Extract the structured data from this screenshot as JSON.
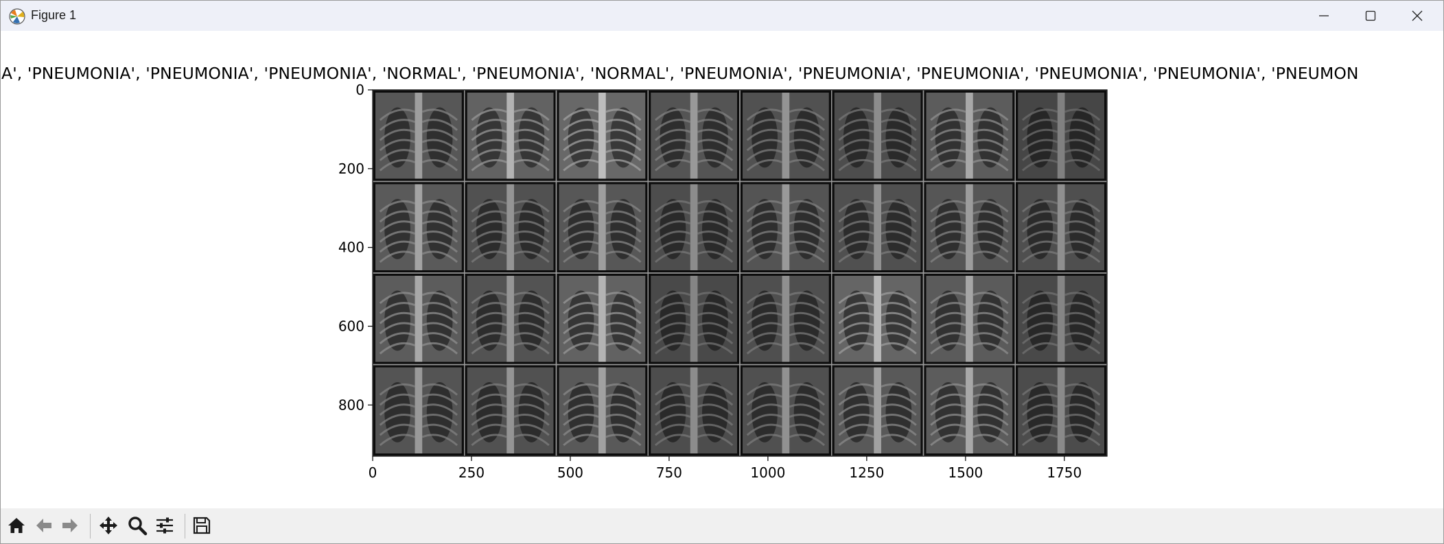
{
  "window": {
    "title": "Figure 1",
    "controls": [
      "minimize-icon",
      "maximize-icon",
      "close-icon"
    ]
  },
  "figure": {
    "title": "IA', 'PNEUMONIA', 'PNEUMONIA', 'PNEUMONIA', 'NORMAL', 'PNEUMONIA', 'NORMAL', 'PNEUMONIA', 'PNEUMONIA', 'PNEUMONIA', 'PNEUMONIA', 'PNEUMONIA', 'PNEUMON"
  },
  "chart_data": {
    "type": "image",
    "grid": {
      "rows": 4,
      "cols": 8
    },
    "xlim": [
      0,
      1858
    ],
    "ylim": [
      930,
      0
    ],
    "xticks": [
      0,
      250,
      500,
      750,
      1000,
      1250,
      1500,
      1750
    ],
    "xtick_labels": [
      "0",
      "250",
      "500",
      "750",
      "1000",
      "1250",
      "1500",
      "1750"
    ],
    "yticks": [
      0,
      200,
      400,
      600,
      800
    ],
    "ytick_labels": [
      "0",
      "200",
      "400",
      "600",
      "800"
    ],
    "cell_brightness": [
      [
        0.62,
        0.7,
        0.74,
        0.6,
        0.58,
        0.55,
        0.66,
        0.5
      ],
      [
        0.64,
        0.58,
        0.62,
        0.55,
        0.6,
        0.57,
        0.61,
        0.56
      ],
      [
        0.66,
        0.59,
        0.7,
        0.52,
        0.56,
        0.72,
        0.65,
        0.52
      ],
      [
        0.6,
        0.58,
        0.63,
        0.55,
        0.57,
        0.63,
        0.66,
        0.54
      ]
    ]
  },
  "toolbar": {
    "items": [
      {
        "name": "home-icon",
        "interactable": true
      },
      {
        "name": "back-arrow-icon",
        "interactable": true
      },
      {
        "name": "forward-arrow-icon",
        "interactable": true
      },
      {
        "name": "pan-icon",
        "interactable": true
      },
      {
        "name": "zoom-icon",
        "interactable": true
      },
      {
        "name": "configure-subplots-icon",
        "interactable": true
      },
      {
        "name": "save-icon",
        "interactable": true
      }
    ]
  },
  "colors": {
    "titlebar": "#eef0f8",
    "toolbar": "#f0f0f0",
    "icon": "#1a1a1a",
    "disabled_icon": "#8a8a8a"
  }
}
